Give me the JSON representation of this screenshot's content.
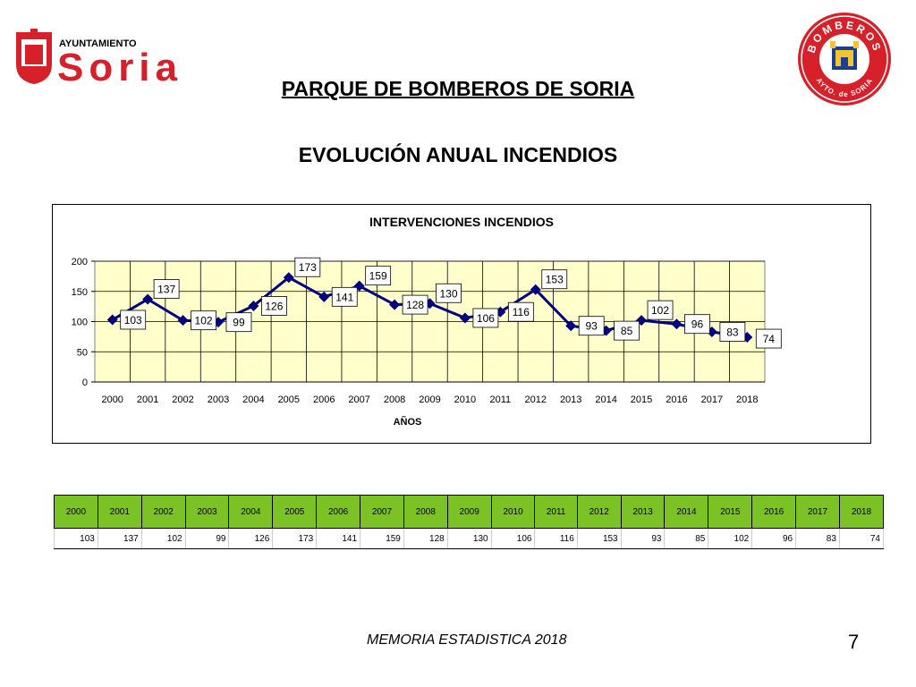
{
  "header": {
    "left_logo": {
      "line1": "AYUNTAMIENTO",
      "line2": "Soria",
      "color": "#d6202a"
    },
    "right_logo": {
      "top_text": "BOMBEROS",
      "bottom_text": "AYTO. de SORIA",
      "color": "#d6202a"
    },
    "title": "PARQUE DE BOMBEROS DE SORIA",
    "subtitle": "EVOLUCIÓN ANUAL INCENDIOS"
  },
  "chart_data": {
    "type": "line",
    "title": "INTERVENCIONES INCENDIOS",
    "xlabel": "AÑOS",
    "ylabel": "",
    "ylim": [
      0,
      200
    ],
    "yticks": [
      0,
      50,
      100,
      150,
      200
    ],
    "grid": true,
    "plot_background": "#ffffcc",
    "line_color": "#000080",
    "categories": [
      "2000",
      "2001",
      "2002",
      "2003",
      "2004",
      "2005",
      "2006",
      "2007",
      "2008",
      "2009",
      "2010",
      "2011",
      "2012",
      "2013",
      "2014",
      "2015",
      "2016",
      "2017",
      "2018"
    ],
    "series": [
      {
        "values": [
          103,
          137,
          102,
          99,
          126,
          173,
          141,
          159,
          128,
          130,
          106,
          116,
          153,
          93,
          85,
          102,
          96,
          83,
          74
        ]
      }
    ]
  },
  "table": {
    "header_color": "#7bc225",
    "years": [
      "2000",
      "2001",
      "2002",
      "2003",
      "2004",
      "2005",
      "2006",
      "2007",
      "2008",
      "2009",
      "2010",
      "2011",
      "2012",
      "2013",
      "2014",
      "2015",
      "2016",
      "2017",
      "2018"
    ],
    "values": [
      "103",
      "137",
      "102",
      "99",
      "126",
      "173",
      "141",
      "159",
      "128",
      "130",
      "106",
      "116",
      "153",
      "93",
      "85",
      "102",
      "96",
      "83",
      "74"
    ]
  },
  "footer": {
    "text": "MEMORIA ESTADISTICA 2018",
    "page": "7"
  }
}
